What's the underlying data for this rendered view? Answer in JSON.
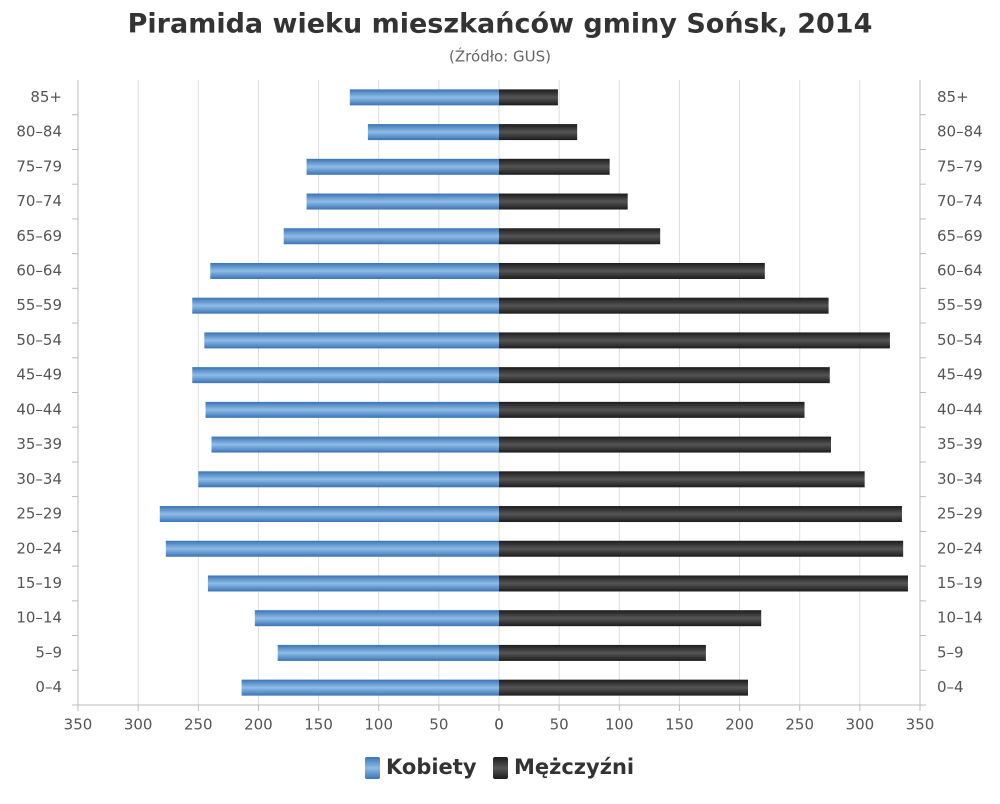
{
  "chart_data": {
    "type": "pyramid",
    "title": "Piramida wieku mieszkańców gminy Sońsk, 2014",
    "subtitle": "(Źródło: GUS)",
    "categories": [
      "0–4",
      "5–9",
      "10–14",
      "15–19",
      "20–24",
      "25–29",
      "30–34",
      "35–39",
      "40–44",
      "45–49",
      "50–54",
      "55–59",
      "60–64",
      "65–69",
      "70–74",
      "75–79",
      "80–84",
      "85+"
    ],
    "series": [
      {
        "name": "Kobiety",
        "color": "#3a74b3",
        "values": [
          214,
          184,
          203,
          242,
          277,
          282,
          250,
          239,
          244,
          255,
          245,
          255,
          240,
          179,
          160,
          160,
          109,
          124
        ]
      },
      {
        "name": "Mężczyźni",
        "color": "#1c1c1c",
        "values": [
          207,
          172,
          218,
          340,
          336,
          335,
          304,
          276,
          254,
          275,
          325,
          274,
          221,
          134,
          107,
          92,
          65,
          49
        ]
      }
    ],
    "xlim": [
      0,
      350
    ],
    "xticks": [
      0,
      50,
      100,
      150,
      200,
      250,
      300,
      350
    ],
    "grid": true,
    "legend": "bottom"
  }
}
